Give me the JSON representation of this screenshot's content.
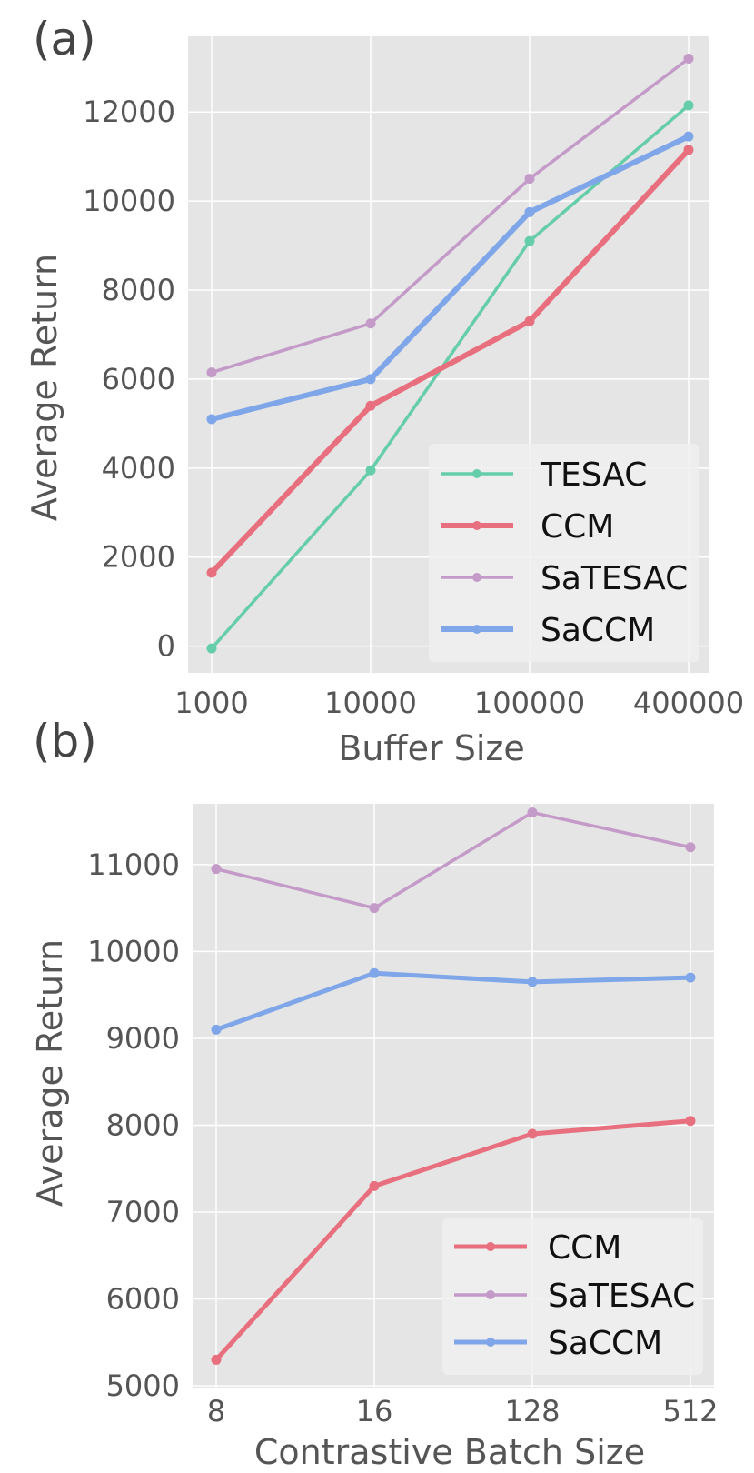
{
  "chart_data": [
    {
      "panel_label": "(a)",
      "type": "line",
      "categories": [
        "1000",
        "10000",
        "100000",
        "400000"
      ],
      "xlabel": "Buffer Size",
      "ylabel": "Average Return",
      "ylim": [
        -600,
        13700
      ],
      "yticks": [
        0,
        2000,
        4000,
        6000,
        8000,
        10000,
        12000
      ],
      "grid": true,
      "legend_position": "bottom-right",
      "series": [
        {
          "name": "TESAC",
          "color": "#66cdaa",
          "values": [
            -50,
            3950,
            9100,
            12150
          ]
        },
        {
          "name": "CCM",
          "color": "#e8707e",
          "values": [
            1650,
            5400,
            7300,
            11150
          ]
        },
        {
          "name": "SaTESAC",
          "color": "#c49ac8",
          "values": [
            6150,
            7250,
            10500,
            13200
          ]
        },
        {
          "name": "SaCCM",
          "color": "#7ea6e8",
          "values": [
            5100,
            6000,
            9750,
            11450
          ]
        }
      ]
    },
    {
      "panel_label": "(b)",
      "type": "line",
      "categories": [
        "8",
        "16",
        "128",
        "512"
      ],
      "xlabel": "Contrastive Batch Size",
      "ylabel": "Average Return",
      "ylim": [
        4980,
        11700
      ],
      "yticks": [
        5000,
        6000,
        7000,
        8000,
        9000,
        10000,
        11000
      ],
      "grid": true,
      "legend_position": "bottom-right",
      "series": [
        {
          "name": "CCM",
          "color": "#e8707e",
          "values": [
            5300,
            7300,
            7900,
            8050
          ]
        },
        {
          "name": "SaTESAC",
          "color": "#c49ac8",
          "values": [
            10950,
            10500,
            11600,
            11200
          ]
        },
        {
          "name": "SaCCM",
          "color": "#7ea6e8",
          "values": [
            9100,
            9750,
            9650,
            9700
          ]
        }
      ]
    }
  ]
}
